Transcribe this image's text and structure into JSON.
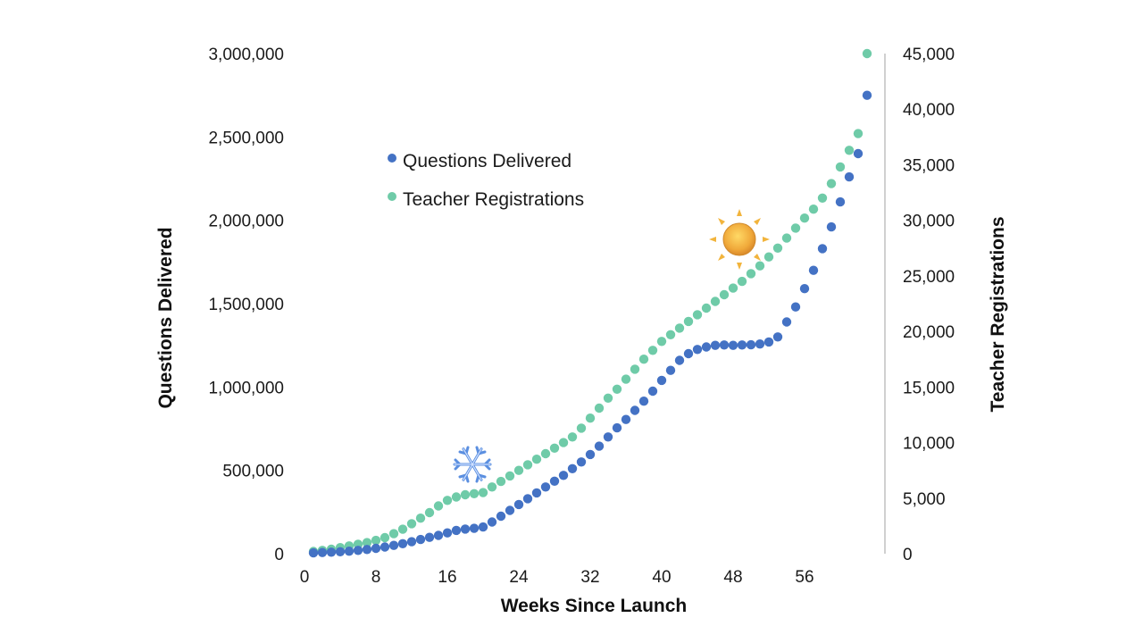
{
  "chart_data": {
    "type": "scatter",
    "xlabel": "Weeks Since Launch",
    "ylabel_left": "Questions Delivered",
    "ylabel_right": "Teacher Registrations",
    "x_ticks": [
      0,
      8,
      16,
      24,
      32,
      40,
      48,
      56
    ],
    "x_tick_labels": [
      "0",
      "8",
      "16",
      "24",
      "32",
      "40",
      "48",
      "56"
    ],
    "xlim": [
      0,
      62.5
    ],
    "ylim_left": [
      0,
      3000000
    ],
    "ylim_right": [
      0,
      45000
    ],
    "y_left_ticks": [
      0,
      500000,
      1000000,
      1500000,
      2000000,
      2500000,
      3000000
    ],
    "y_left_tick_labels": [
      "0",
      "500,000",
      "1,000,000",
      "1,500,000",
      "2,000,000",
      "2,500,000",
      "3,000,000"
    ],
    "y_right_ticks": [
      0,
      5000,
      10000,
      15000,
      20000,
      25000,
      30000,
      35000,
      40000,
      45000
    ],
    "y_right_tick_labels": [
      "0",
      "5,000",
      "10,000",
      "15,000",
      "20,000",
      "25,000",
      "30,000",
      "35,000",
      "40,000",
      "45,000"
    ],
    "legend_position": "upper-left",
    "annotations": [
      {
        "icon": "snowflake-icon",
        "x": 18
      },
      {
        "icon": "sun-icon",
        "x": 46
      }
    ],
    "series": [
      {
        "name": "Questions Delivered",
        "axis": "left",
        "color": "#4472C4",
        "x": [
          1,
          2,
          3,
          4,
          5,
          6,
          7,
          8,
          9,
          10,
          11,
          12,
          13,
          14,
          15,
          16,
          17,
          18,
          19,
          20,
          21,
          22,
          23,
          24,
          25,
          26,
          27,
          28,
          29,
          30,
          31,
          32,
          33,
          34,
          35,
          36,
          37,
          38,
          39,
          40,
          41,
          42,
          43,
          44,
          45,
          46,
          47,
          48,
          49,
          50,
          51,
          52,
          53,
          54,
          55,
          56,
          57,
          58,
          59,
          60,
          61,
          62
        ],
        "values": [
          5000,
          7000,
          9000,
          12000,
          15000,
          20000,
          25000,
          32000,
          40000,
          50000,
          60000,
          72000,
          85000,
          98000,
          110000,
          125000,
          140000,
          148000,
          152000,
          160000,
          190000,
          225000,
          260000,
          295000,
          330000,
          365000,
          400000,
          435000,
          470000,
          510000,
          550000,
          595000,
          645000,
          700000,
          755000,
          805000,
          860000,
          915000,
          975000,
          1040000,
          1100000,
          1160000,
          1200000,
          1225000,
          1240000,
          1250000,
          1252000,
          1250000,
          1252000,
          1253000,
          1258000,
          1270000,
          1300000,
          1390000,
          1480000,
          1590000,
          1700000,
          1830000,
          1960000,
          2110000,
          2260000,
          2400000
        ]
      },
      {
        "name": "Teacher Registrations",
        "axis": "right",
        "color": "#6FCBA8",
        "x": [
          1,
          2,
          3,
          4,
          5,
          6,
          7,
          8,
          9,
          10,
          11,
          12,
          13,
          14,
          15,
          16,
          17,
          18,
          19,
          20,
          21,
          22,
          23,
          24,
          25,
          26,
          27,
          28,
          29,
          30,
          31,
          32,
          33,
          34,
          35,
          36,
          37,
          38,
          39,
          40,
          41,
          42,
          43,
          44,
          45,
          46,
          47,
          48,
          49,
          50,
          51,
          52,
          53,
          54,
          55,
          56,
          57,
          58,
          59,
          60,
          61,
          62
        ],
        "values": [
          200,
          300,
          400,
          550,
          700,
          850,
          1000,
          1200,
          1450,
          1800,
          2200,
          2700,
          3200,
          3700,
          4300,
          4800,
          5100,
          5300,
          5400,
          5500,
          6000,
          6500,
          7000,
          7500,
          8000,
          8500,
          9000,
          9500,
          10000,
          10500,
          11300,
          12200,
          13100,
          14000,
          14800,
          15700,
          16600,
          17500,
          18300,
          19100,
          19700,
          20300,
          20900,
          21500,
          22100,
          22700,
          23300,
          23900,
          24500,
          25200,
          25900,
          26700,
          27500,
          28400,
          29300,
          30200,
          31000,
          32000,
          33300,
          34800,
          36300,
          37800
        ]
      }
    ],
    "series_tail": {
      "Questions Delivered": {
        "x": [
          63
        ],
        "values": [
          2750000
        ]
      },
      "Teacher Registrations": {
        "x": [
          63
        ],
        "values": [
          45000
        ]
      }
    }
  }
}
